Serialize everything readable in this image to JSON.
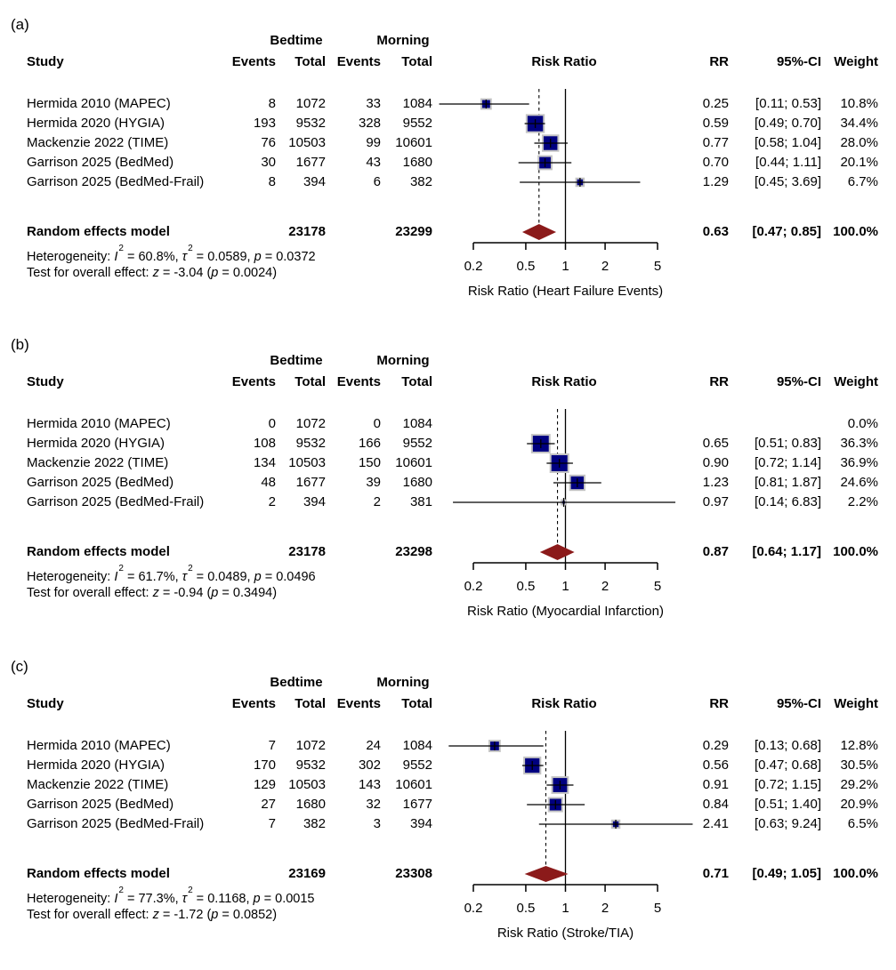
{
  "chart_data": {
    "type": "forest",
    "x_scale": "log",
    "x_ticks": [
      0.2,
      0.5,
      1,
      2,
      5
    ],
    "x_tick_labels": [
      "0.2",
      "0.5",
      "1",
      "2",
      "5"
    ],
    "reference_line": 1,
    "colors": {
      "square_fill": "#000080",
      "square_border": "#c4c4c4",
      "diamond_fill": "#8b1a1a",
      "line": "#000000"
    },
    "columns": {
      "study": "Study",
      "group1": "Bedtime",
      "group2": "Morning",
      "events": "Events",
      "total": "Total",
      "plot": "Risk Ratio",
      "rr": "RR",
      "ci": "95%-CI",
      "weight": "Weight"
    },
    "panels": [
      {
        "label": "(a)",
        "xlabel": "Risk Ratio (Heart Failure Events)",
        "studies": [
          {
            "name": "Hermida 2010 (MAPEC)",
            "e1": "8",
            "n1": "1072",
            "e2": "33",
            "n2": "1084",
            "rr": 0.25,
            "lo": 0.11,
            "hi": 0.53,
            "rr_text": "0.25",
            "ci_text": "[0.11; 0.53]",
            "weight": 10.8,
            "weight_text": "10.8%"
          },
          {
            "name": "Hermida 2020 (HYGIA)",
            "e1": "193",
            "n1": "9532",
            "e2": "328",
            "n2": "9552",
            "rr": 0.59,
            "lo": 0.49,
            "hi": 0.7,
            "rr_text": "0.59",
            "ci_text": "[0.49; 0.70]",
            "weight": 34.4,
            "weight_text": "34.4%"
          },
          {
            "name": "Mackenzie 2022 (TIME)",
            "e1": "76",
            "n1": "10503",
            "e2": "99",
            "n2": "10601",
            "rr": 0.77,
            "lo": 0.58,
            "hi": 1.04,
            "rr_text": "0.77",
            "ci_text": "[0.58; 1.04]",
            "weight": 28.0,
            "weight_text": "28.0%"
          },
          {
            "name": "Garrison 2025 (BedMed)",
            "e1": "30",
            "n1": "1677",
            "e2": "43",
            "n2": "1680",
            "rr": 0.7,
            "lo": 0.44,
            "hi": 1.11,
            "rr_text": "0.70",
            "ci_text": "[0.44; 1.11]",
            "weight": 20.1,
            "weight_text": "20.1%"
          },
          {
            "name": "Garrison 2025 (BedMed-Frail)",
            "e1": "8",
            "n1": "394",
            "e2": "6",
            "n2": "382",
            "rr": 1.29,
            "lo": 0.45,
            "hi": 3.69,
            "rr_text": "1.29",
            "ci_text": "[0.45; 3.69]",
            "weight": 6.7,
            "weight_text": "6.7%"
          }
        ],
        "summary": {
          "name": "Random effects model",
          "n1": "23178",
          "n2": "23299",
          "rr": 0.63,
          "lo": 0.47,
          "hi": 0.85,
          "rr_text": "0.63",
          "ci_text": "[0.47; 0.85]",
          "weight_text": "100.0%"
        },
        "heterogeneity": {
          "label": "Heterogeneity:",
          "i2_sym": "I",
          "exp": "2",
          "i2": "60.8%",
          "tau_sym": "τ",
          "tau2": "0.0589",
          "p_sym": "p",
          "p": "0.0372"
        },
        "overall_test": {
          "label": "Test for overall effect:",
          "z_sym": "z",
          "z": "-3.04",
          "p_sym": "p",
          "p": "0.0024"
        }
      },
      {
        "label": "(b)",
        "xlabel": "Risk Ratio (Myocardial Infarction)",
        "studies": [
          {
            "name": "Hermida 2010 (MAPEC)",
            "e1": "0",
            "n1": "1072",
            "e2": "0",
            "n2": "1084",
            "rr": null,
            "rr_text": "",
            "ci_text": "",
            "weight": 0.0,
            "weight_text": "0.0%"
          },
          {
            "name": "Hermida 2020 (HYGIA)",
            "e1": "108",
            "n1": "9532",
            "e2": "166",
            "n2": "9552",
            "rr": 0.65,
            "lo": 0.51,
            "hi": 0.83,
            "rr_text": "0.65",
            "ci_text": "[0.51; 0.83]",
            "weight": 36.3,
            "weight_text": "36.3%"
          },
          {
            "name": "Mackenzie 2022 (TIME)",
            "e1": "134",
            "n1": "10503",
            "e2": "150",
            "n2": "10601",
            "rr": 0.9,
            "lo": 0.72,
            "hi": 1.14,
            "rr_text": "0.90",
            "ci_text": "[0.72; 1.14]",
            "weight": 36.9,
            "weight_text": "36.9%"
          },
          {
            "name": "Garrison 2025 (BedMed)",
            "e1": "48",
            "n1": "1677",
            "e2": "39",
            "n2": "1680",
            "rr": 1.23,
            "lo": 0.81,
            "hi": 1.87,
            "rr_text": "1.23",
            "ci_text": "[0.81; 1.87]",
            "weight": 24.6,
            "weight_text": "24.6%"
          },
          {
            "name": "Garrison 2025 (BedMed-Frail)",
            "e1": "2",
            "n1": "394",
            "e2": "2",
            "n2": "381",
            "rr": 0.97,
            "lo": 0.14,
            "hi": 6.83,
            "rr_text": "0.97",
            "ci_text": "[0.14; 6.83]",
            "weight": 2.2,
            "weight_text": "2.2%"
          }
        ],
        "summary": {
          "name": "Random effects model",
          "n1": "23178",
          "n2": "23298",
          "rr": 0.87,
          "lo": 0.64,
          "hi": 1.17,
          "rr_text": "0.87",
          "ci_text": "[0.64; 1.17]",
          "weight_text": "100.0%"
        },
        "heterogeneity": {
          "label": "Heterogeneity:",
          "i2_sym": "I",
          "exp": "2",
          "i2": "61.7%",
          "tau_sym": "τ",
          "tau2": "0.0489",
          "p_sym": "p",
          "p": "0.0496"
        },
        "overall_test": {
          "label": "Test for overall effect:",
          "z_sym": "z",
          "z": "-0.94",
          "p_sym": "p",
          "p": "0.3494"
        }
      },
      {
        "label": "(c)",
        "xlabel": "Risk Ratio (Stroke/TIA)",
        "studies": [
          {
            "name": "Hermida 2010 (MAPEC)",
            "e1": "7",
            "n1": "1072",
            "e2": "24",
            "n2": "1084",
            "rr": 0.29,
            "lo": 0.13,
            "hi": 0.68,
            "rr_text": "0.29",
            "ci_text": "[0.13; 0.68]",
            "weight": 12.8,
            "weight_text": "12.8%"
          },
          {
            "name": "Hermida 2020 (HYGIA)",
            "e1": "170",
            "n1": "9532",
            "e2": "302",
            "n2": "9552",
            "rr": 0.56,
            "lo": 0.47,
            "hi": 0.68,
            "rr_text": "0.56",
            "ci_text": "[0.47; 0.68]",
            "weight": 30.5,
            "weight_text": "30.5%"
          },
          {
            "name": "Mackenzie 2022 (TIME)",
            "e1": "129",
            "n1": "10503",
            "e2": "143",
            "n2": "10601",
            "rr": 0.91,
            "lo": 0.72,
            "hi": 1.15,
            "rr_text": "0.91",
            "ci_text": "[0.72; 1.15]",
            "weight": 29.2,
            "weight_text": "29.2%"
          },
          {
            "name": "Garrison 2025 (BedMed)",
            "e1": "27",
            "n1": "1680",
            "e2": "32",
            "n2": "1677",
            "rr": 0.84,
            "lo": 0.51,
            "hi": 1.4,
            "rr_text": "0.84",
            "ci_text": "[0.51; 1.40]",
            "weight": 20.9,
            "weight_text": "20.9%"
          },
          {
            "name": "Garrison 2025 (BedMed-Frail)",
            "e1": "7",
            "n1": "382",
            "e2": "3",
            "n2": "394",
            "rr": 2.41,
            "lo": 0.63,
            "hi": 9.24,
            "rr_text": "2.41",
            "ci_text": "[0.63; 9.24]",
            "weight": 6.5,
            "weight_text": "6.5%"
          }
        ],
        "summary": {
          "name": "Random effects model",
          "n1": "23169",
          "n2": "23308",
          "rr": 0.71,
          "lo": 0.49,
          "hi": 1.05,
          "rr_text": "0.71",
          "ci_text": "[0.49; 1.05]",
          "weight_text": "100.0%"
        },
        "heterogeneity": {
          "label": "Heterogeneity:",
          "i2_sym": "I",
          "exp": "2",
          "i2": "77.3%",
          "tau_sym": "τ",
          "tau2": "0.1168",
          "p_sym": "p",
          "p": "0.0015"
        },
        "overall_test": {
          "label": "Test for overall effect:",
          "z_sym": "z",
          "z": "-1.72",
          "p_sym": "p",
          "p": "0.0852"
        }
      }
    ]
  }
}
